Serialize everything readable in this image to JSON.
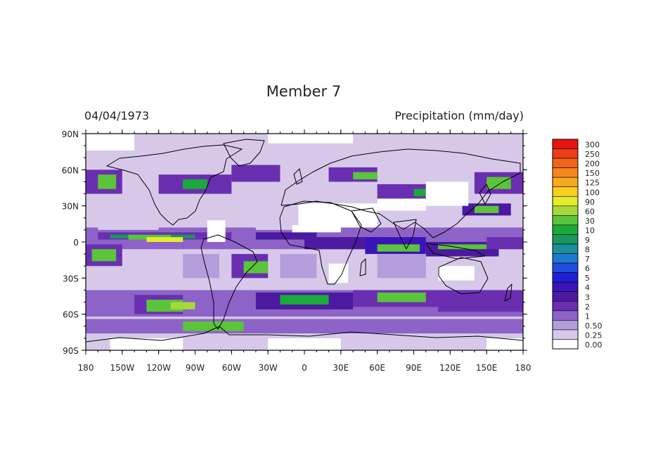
{
  "title": "Member 7",
  "date_label": "04/04/1973",
  "variable_label": "Precipitation (mm/day)",
  "map": {
    "x_ticks": [
      "180",
      "150W",
      "120W",
      "90W",
      "60W",
      "30W",
      "0",
      "30E",
      "60E",
      "90E",
      "120E",
      "150E",
      "180"
    ],
    "y_ticks": [
      "90N",
      "60N",
      "30N",
      "0",
      "30S",
      "60S",
      "90S"
    ],
    "lon_range": [
      -180,
      180
    ],
    "lat_range": [
      -90,
      90
    ],
    "projection": "cylindrical equidistant",
    "coastlines": true
  },
  "legend": {
    "labels": [
      "0.00",
      "0.25",
      "0.50",
      "1",
      "2",
      "3",
      "4",
      "5",
      "6",
      "7",
      "8",
      "9",
      "10",
      "30",
      "60",
      "90",
      "100",
      "125",
      "150",
      "200",
      "250",
      "300"
    ],
    "colors": [
      "#ffffff",
      "#d7c8ea",
      "#b39ddb",
      "#8d63c8",
      "#6a2fb0",
      "#4b1aa0",
      "#3a14b8",
      "#2020d8",
      "#1e4de0",
      "#1e7ad0",
      "#1c8f9c",
      "#17985c",
      "#1aaa3a",
      "#5bc43a",
      "#a7d83a",
      "#e6ec2c",
      "#f8cf22",
      "#f8aa1e",
      "#f6861a",
      "#f26418",
      "#ee3d14",
      "#e81410"
    ]
  }
}
